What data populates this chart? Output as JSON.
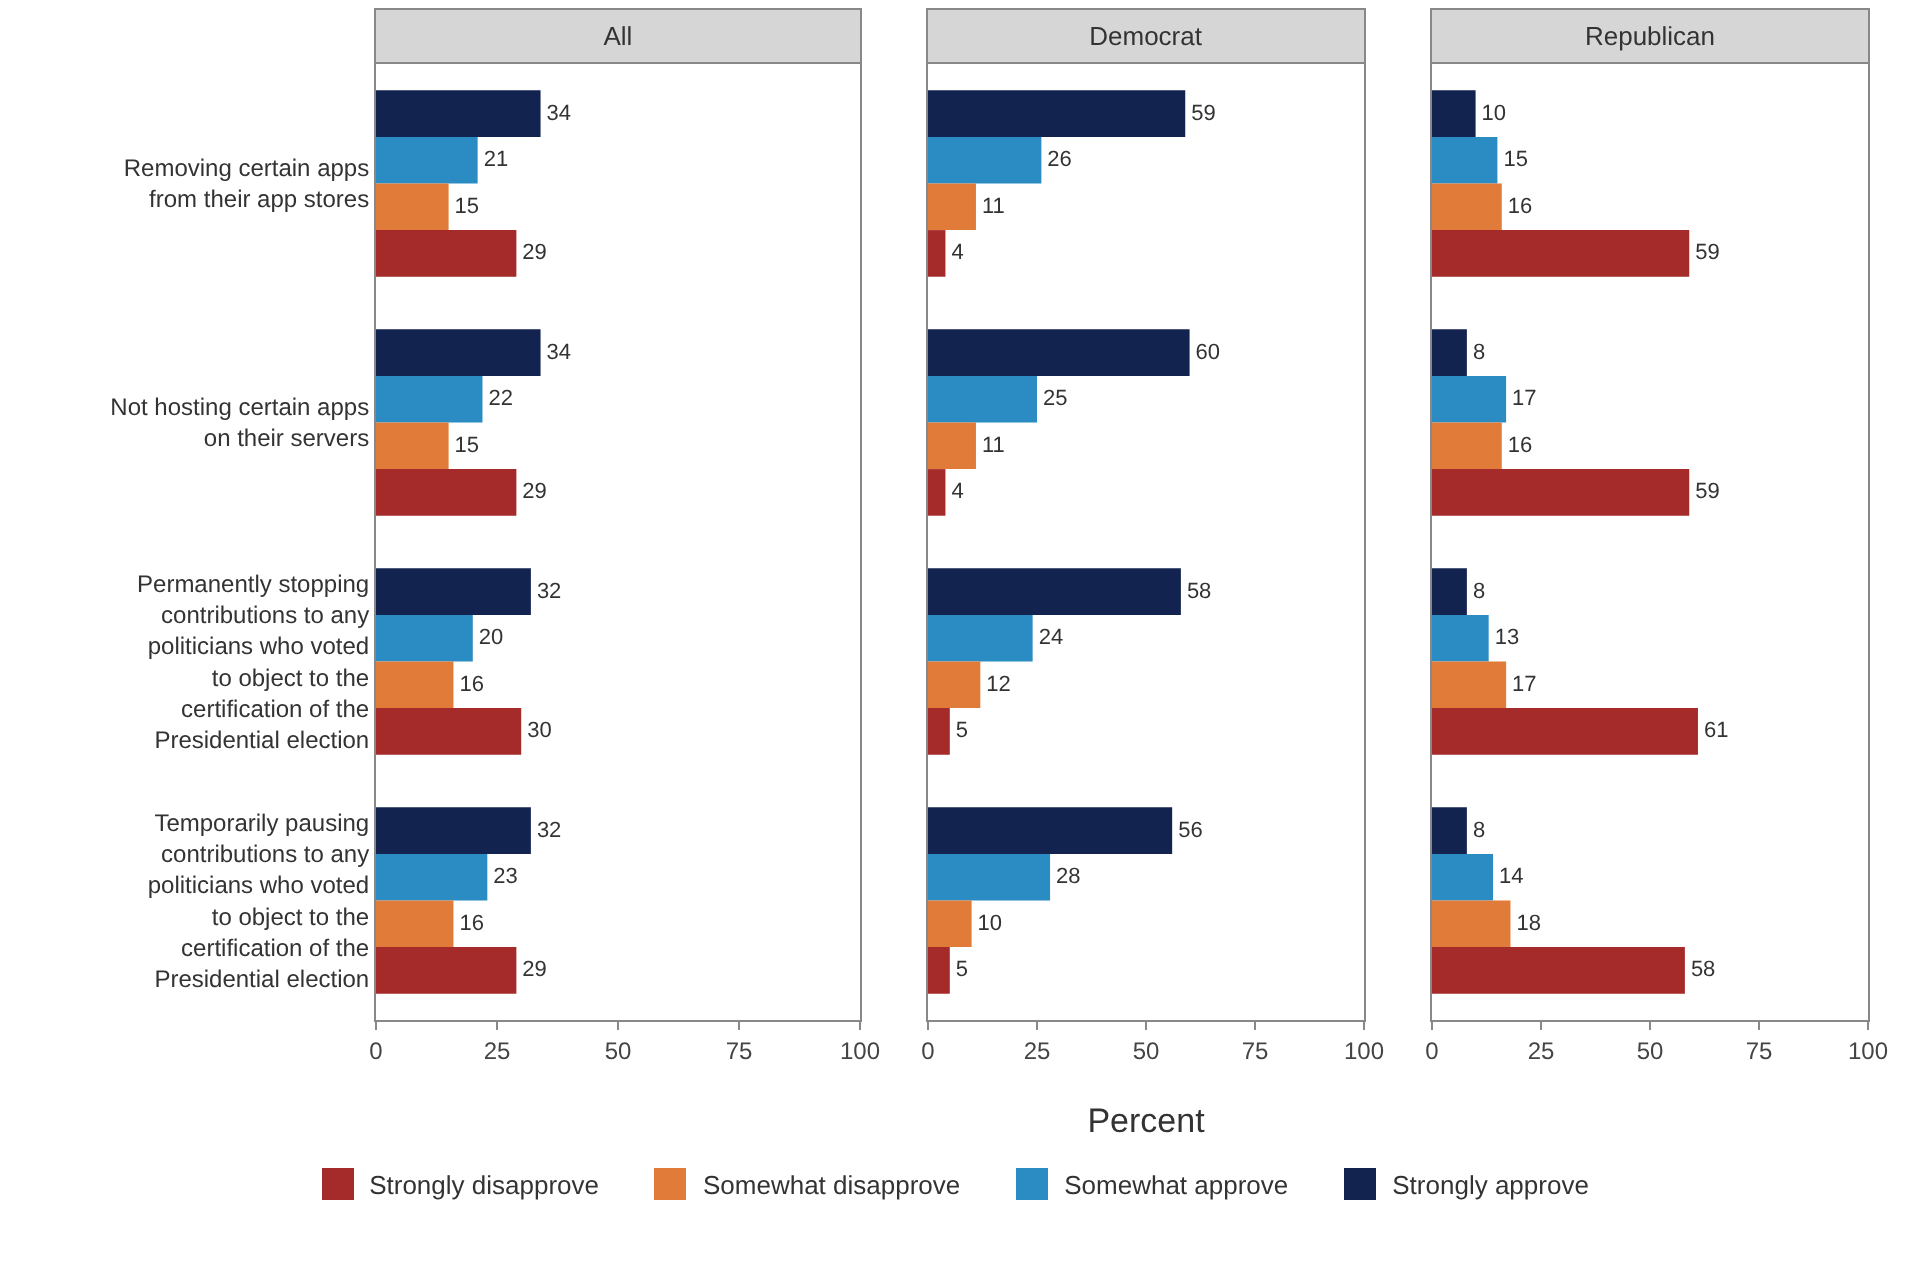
{
  "chart_data": [
    {
      "type": "bar",
      "orientation": "horizontal",
      "title": "All",
      "categories": [
        "Removing certain apps\nfrom their app stores",
        "Not hosting certain apps\non their servers",
        "Permanently stopping\ncontributions to any\npoliticians who voted\nto object to the\ncertification of the\nPresidential election",
        "Temporarily pausing\ncontributions to any\npoliticians who voted\nto object to the\ncertification of the\nPresidential election"
      ],
      "series": [
        {
          "name": "Strongly disapprove",
          "color": "#a52a2a",
          "values": [
            29,
            29,
            30,
            29
          ]
        },
        {
          "name": "Somewhat disapprove",
          "color": "#e07b39",
          "values": [
            15,
            15,
            16,
            16
          ]
        },
        {
          "name": "Somewhat approve",
          "color": "#2b8cc4",
          "values": [
            21,
            22,
            20,
            23
          ]
        },
        {
          "name": "Strongly approve",
          "color": "#13234f",
          "values": [
            34,
            34,
            32,
            32
          ]
        }
      ],
      "xlim": [
        0,
        100
      ],
      "xticks": [
        0,
        25,
        50,
        75,
        100
      ],
      "data_labels": true,
      "legend": "bottom"
    },
    {
      "type": "bar",
      "orientation": "horizontal",
      "title": "Democrat",
      "xlabel": "Percent",
      "tick_labels": "x",
      "categories": [
        null,
        null,
        null,
        null
      ],
      "series": [
        {
          "color": "#a52a2a",
          "values": [
            4,
            4,
            5,
            5
          ]
        },
        {
          "color": "#e07b39",
          "values": [
            11,
            11,
            12,
            10
          ]
        },
        {
          "color": "#2b8cc4",
          "values": [
            26,
            25,
            24,
            28
          ]
        },
        {
          "color": "#13234f",
          "values": [
            59,
            60,
            58,
            56
          ]
        }
      ],
      "xlim": [
        0,
        100
      ],
      "xticks": [
        0,
        25,
        50,
        75,
        100
      ],
      "data_labels": true
    },
    {
      "type": "bar",
      "orientation": "horizontal",
      "title": "Republican",
      "tick_labels": "x",
      "categories": [
        null,
        null,
        null,
        null
      ],
      "series": [
        {
          "color": "#a52a2a",
          "values": [
            59,
            59,
            61,
            58
          ]
        },
        {
          "color": "#e07b39",
          "values": [
            16,
            16,
            17,
            18
          ]
        },
        {
          "color": "#2b8cc4",
          "values": [
            15,
            17,
            13,
            14
          ]
        },
        {
          "color": "#13234f",
          "values": [
            10,
            8,
            8,
            8
          ]
        }
      ],
      "xlim": [
        0,
        100
      ],
      "xticks": [
        0,
        25,
        50,
        75,
        100
      ],
      "data_labels": true
    }
  ]
}
